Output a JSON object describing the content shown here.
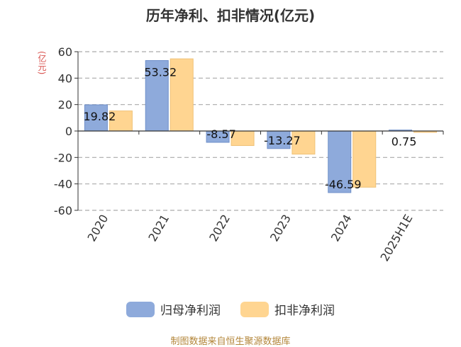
{
  "title": "历年净利、扣非情况(亿元)",
  "unit": "(亿元)",
  "source": "制图数据来自恒生聚源数据库",
  "colors": {
    "net_profit": "#8eaadb",
    "deducted": "#ffd591"
  },
  "chart_data": {
    "type": "bar",
    "categories": [
      "2020",
      "2021",
      "2022",
      "2023",
      "2024",
      "2025H1E"
    ],
    "series": [
      {
        "name": "归母净利润",
        "values": [
          19.82,
          53.32,
          -8.57,
          -13.27,
          -46.59,
          0.75
        ],
        "labels": [
          "19.82",
          "53.32",
          "-8.57",
          "-13.27",
          "-46.59",
          "0.75"
        ]
      },
      {
        "name": "扣非净利润",
        "values": [
          15.2,
          54.6,
          -11.0,
          -17.5,
          -42.5,
          -1.0
        ]
      }
    ],
    "yticks": [
      60,
      40,
      20,
      0,
      -20,
      -40,
      -60
    ],
    "ylim": [
      -60,
      60
    ],
    "grid": true,
    "legend": "bottom"
  }
}
